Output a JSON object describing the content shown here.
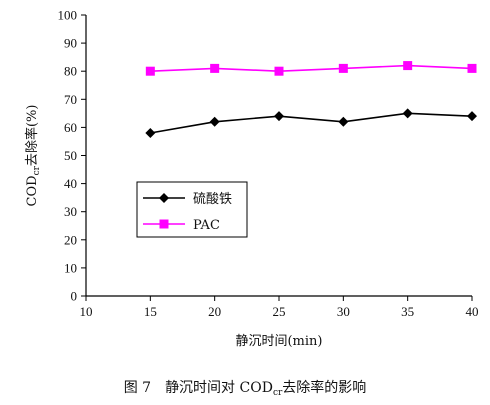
{
  "chart_data": {
    "type": "line",
    "x": [
      15,
      20,
      25,
      30,
      35,
      40
    ],
    "xlim": [
      10,
      40
    ],
    "ylim": [
      0,
      100
    ],
    "x_ticks": [
      "10",
      "15",
      "20",
      "25",
      "30",
      "35",
      "40"
    ],
    "y_ticks": [
      "0",
      "10",
      "20",
      "30",
      "40",
      "50",
      "60",
      "70",
      "80",
      "90",
      "100"
    ],
    "xlabel": "静沉时间(min)",
    "ylabel": {
      "main": "COD",
      "sub": "cr",
      "rest": "去除率(%)"
    },
    "grid": false,
    "legend_position": "left-middle",
    "series": [
      {
        "name": "硫酸铁",
        "values": [
          58,
          62,
          64,
          62,
          65,
          64
        ],
        "color": "#000000",
        "marker": "diamond"
      },
      {
        "name": "PAC",
        "values": [
          80,
          81,
          80,
          81,
          82,
          81
        ],
        "color": "#ff00ff",
        "marker": "square"
      }
    ]
  },
  "caption": {
    "prefix": "图 7",
    "title_a": "静沉时间对 COD",
    "title_sub": "cr",
    "title_b": "去除率的影响"
  }
}
